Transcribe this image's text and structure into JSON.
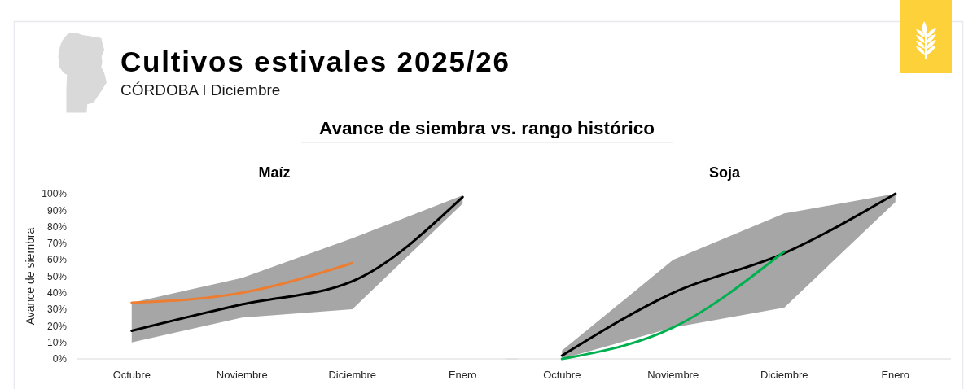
{
  "chart_data": [
    {
      "type": "other",
      "title": "Cultivos estivales 2025/26",
      "subtitle": "CÓRDOBA I Diciembre",
      "annotations": [
        "Avance de siembra vs. rango histórico"
      ]
    },
    {
      "type": "line",
      "title": "Maíz",
      "ylabel": "Avance de siembra",
      "categories": [
        "Octubre",
        "Noviembre",
        "Diciembre",
        "Enero"
      ],
      "series": [
        {
          "color": "#000000",
          "values": [
            17,
            33,
            47,
            98
          ],
          "lower": [
            10,
            25,
            30,
            94
          ],
          "upper": [
            34,
            49,
            73,
            99
          ]
        },
        {
          "color": "#ed7d31",
          "values": [
            34,
            40,
            58,
            null
          ]
        }
      ],
      "ylim": [
        0,
        100
      ],
      "yticks": [
        {
          "value": 0,
          "label": "0%"
        },
        {
          "value": 10,
          "label": "10%"
        },
        {
          "value": 20,
          "label": "20%"
        },
        {
          "value": 30,
          "label": "30%"
        },
        {
          "value": 40,
          "label": "40%"
        },
        {
          "value": 50,
          "label": "50%"
        },
        {
          "value": 60,
          "label": "60%"
        },
        {
          "value": 70,
          "label": "70%"
        },
        {
          "value": 80,
          "label": "80%"
        },
        {
          "value": 90,
          "label": "90%"
        },
        {
          "value": 100,
          "label": "100%"
        }
      ]
    },
    {
      "type": "line",
      "title": "Soja",
      "categories": [
        "Octubre",
        "Noviembre",
        "Diciembre",
        "Enero"
      ],
      "series": [
        {
          "color": "#000000",
          "values": [
            2,
            40,
            64,
            100
          ],
          "lower": [
            0,
            19,
            31,
            95
          ],
          "upper": [
            5,
            60,
            88,
            100
          ]
        },
        {
          "color": "#00b050",
          "values": [
            0,
            19,
            65,
            null
          ]
        }
      ],
      "ylim": [
        0,
        100
      ],
      "tick_labels": "x"
    }
  ]
}
